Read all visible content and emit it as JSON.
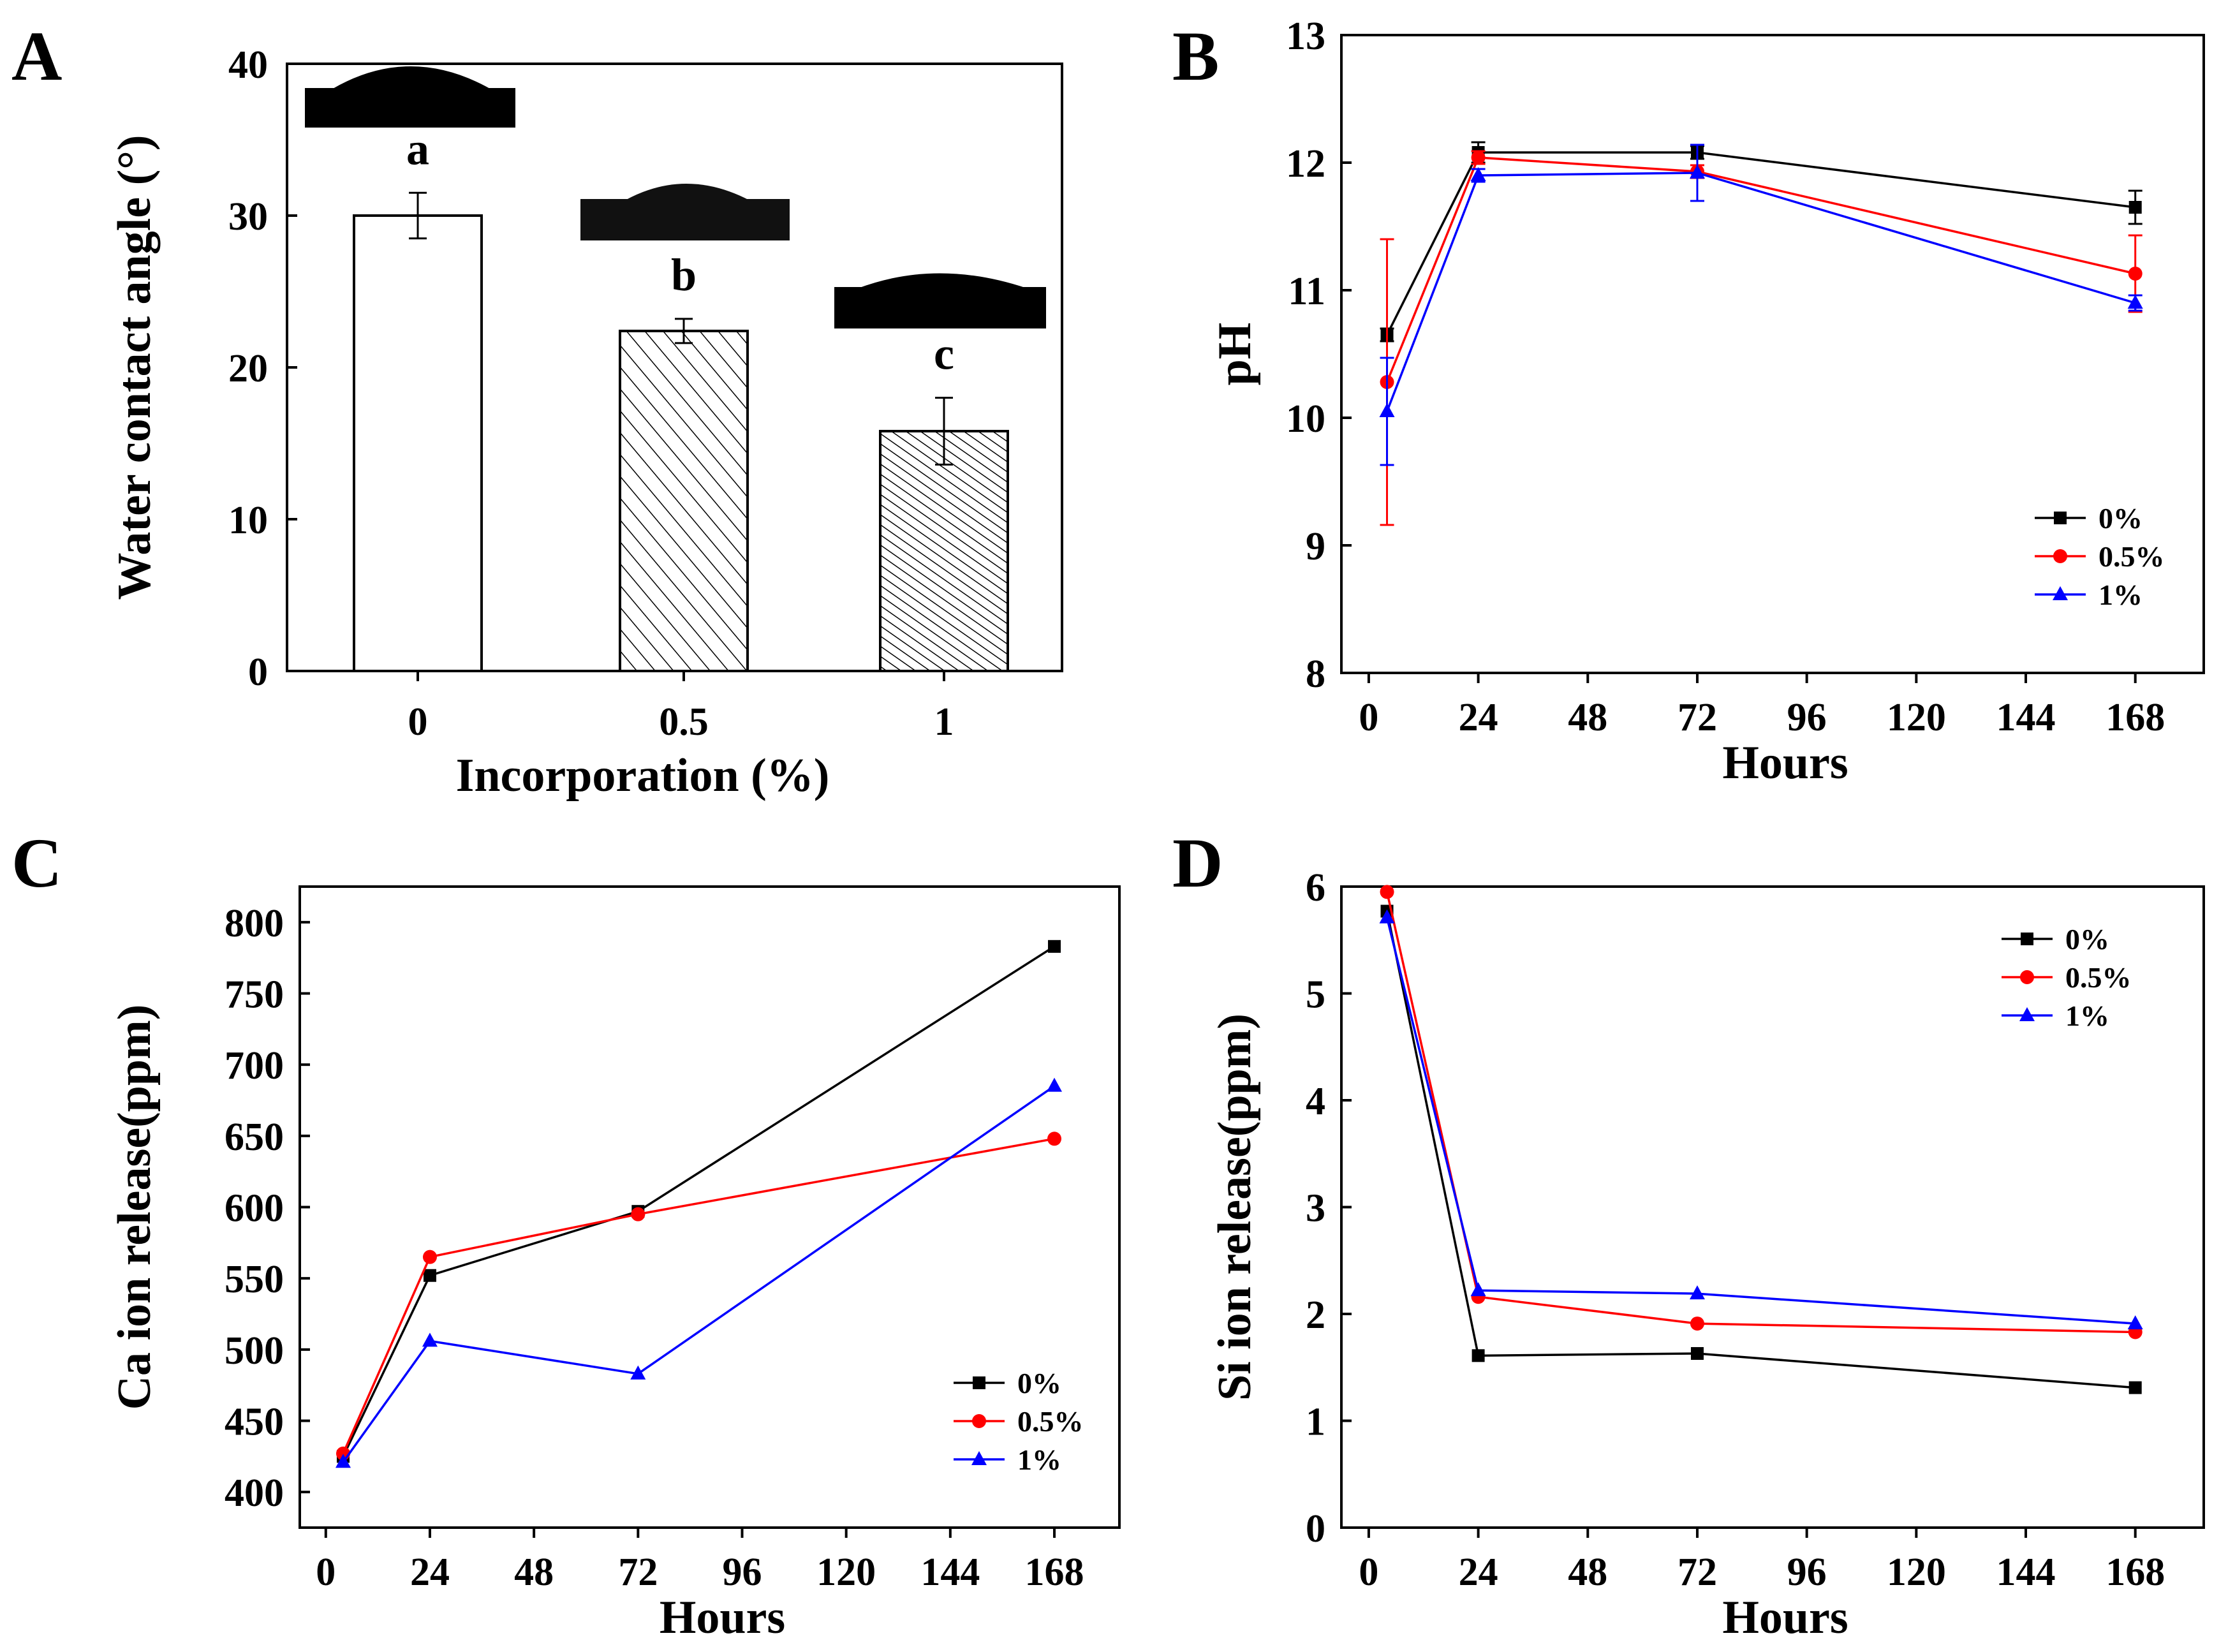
{
  "figure": {
    "panels": [
      "A",
      "B",
      "C",
      "D"
    ]
  },
  "chart_data": [
    {
      "panel": "A",
      "type": "bar",
      "xlabel": "Incorporation (%)",
      "ylabel": "Water contact angle (°)",
      "ylim": [
        0,
        40
      ],
      "yticks": [
        "0",
        "10",
        "20",
        "30",
        "40"
      ],
      "categories": [
        "0",
        "0.5",
        "1"
      ],
      "values": [
        30,
        22.4,
        15.8
      ],
      "errors": [
        1.5,
        0.8,
        2.2
      ],
      "letters": [
        "a",
        "b",
        "c"
      ],
      "fills": [
        "open",
        "hatched",
        "hatched-dense"
      ],
      "droplet_images": [
        "droplet-0",
        "droplet-0.5",
        "droplet-1"
      ]
    },
    {
      "panel": "B",
      "type": "line",
      "xlabel": "Hours",
      "ylabel": "pH",
      "xlim": [
        -6,
        183
      ],
      "ylim": [
        8,
        13
      ],
      "xticks": [
        "0",
        "24",
        "48",
        "72",
        "96",
        "120",
        "144",
        "168"
      ],
      "yticks": [
        "8",
        "9",
        "10",
        "11",
        "12",
        "13"
      ],
      "legend_position": "lower-right",
      "series": [
        {
          "name": "0%",
          "color": "#000000",
          "marker": "square",
          "x": [
            4,
            24,
            72,
            168
          ],
          "y": [
            10.65,
            12.08,
            12.08,
            11.65
          ],
          "err": [
            0.05,
            0.08,
            0.05,
            0.13
          ]
        },
        {
          "name": "0.5%",
          "color": "#ff0000",
          "marker": "circle",
          "x": [
            4,
            24,
            72,
            168
          ],
          "y": [
            10.28,
            12.04,
            11.93,
            11.13
          ],
          "err": [
            1.12,
            0.05,
            0.05,
            0.3
          ]
        },
        {
          "name": "1%",
          "color": "#0000ff",
          "marker": "triangle",
          "x": [
            4,
            24,
            72,
            168
          ],
          "y": [
            10.05,
            11.9,
            11.92,
            10.9
          ],
          "err": [
            0.42,
            0.05,
            0.22,
            0.06
          ]
        }
      ]
    },
    {
      "panel": "C",
      "type": "line",
      "xlabel": "Hours",
      "ylabel": "Ca ion release(ppm)",
      "xlim": [
        -6,
        183
      ],
      "ylim": [
        375,
        825
      ],
      "xticks": [
        "0",
        "24",
        "48",
        "72",
        "96",
        "120",
        "144",
        "168"
      ],
      "yticks": [
        "400",
        "450",
        "500",
        "550",
        "600",
        "650",
        "700",
        "750",
        "800"
      ],
      "legend_position": "lower-right",
      "series": [
        {
          "name": "0%",
          "color": "#000000",
          "marker": "square",
          "x": [
            4,
            24,
            72,
            168
          ],
          "y": [
            425,
            552,
            597,
            783
          ]
        },
        {
          "name": "0.5%",
          "color": "#ff0000",
          "marker": "circle",
          "x": [
            4,
            24,
            72,
            168
          ],
          "y": [
            427,
            565,
            595,
            648
          ]
        },
        {
          "name": "1%",
          "color": "#0000ff",
          "marker": "triangle",
          "x": [
            4,
            24,
            72,
            168
          ],
          "y": [
            421,
            506,
            483,
            685
          ]
        }
      ]
    },
    {
      "panel": "D",
      "type": "line",
      "xlabel": "Hours",
      "ylabel": "Si ion release(ppm)",
      "xlim": [
        -6,
        183
      ],
      "ylim": [
        0,
        6
      ],
      "xticks": [
        "0",
        "24",
        "48",
        "72",
        "96",
        "120",
        "144",
        "168"
      ],
      "yticks": [
        "0",
        "1",
        "2",
        "3",
        "4",
        "5",
        "6"
      ],
      "legend_position": "top-right",
      "series": [
        {
          "name": "0%",
          "color": "#000000",
          "marker": "square",
          "x": [
            4,
            24,
            72,
            168
          ],
          "y": [
            5.77,
            1.61,
            1.63,
            1.31
          ]
        },
        {
          "name": "0.5%",
          "color": "#ff0000",
          "marker": "circle",
          "x": [
            4,
            24,
            72,
            168
          ],
          "y": [
            5.95,
            2.16,
            1.91,
            1.83
          ]
        },
        {
          "name": "1%",
          "color": "#0000ff",
          "marker": "triangle",
          "x": [
            4,
            24,
            72,
            168
          ],
          "y": [
            5.71,
            2.22,
            2.19,
            1.91
          ]
        }
      ]
    }
  ]
}
